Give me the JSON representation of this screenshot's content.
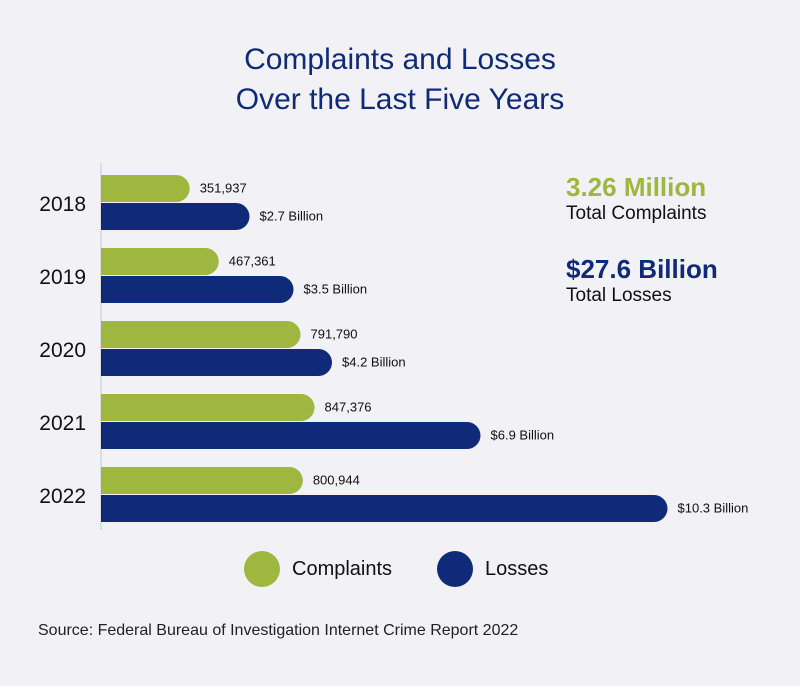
{
  "title_line1": "Complaints and Losses",
  "title_line2": "Over the Last Five Years",
  "colors": {
    "complaints": "#9fb63f",
    "losses": "#0f2a78",
    "background": "#f1f1f6",
    "axis": "#c6c6cc"
  },
  "stats": {
    "complaints_value": "3.26 Million",
    "complaints_label": "Total Complaints",
    "losses_value": "$27.6 Billion",
    "losses_label": "Total Losses"
  },
  "legend": {
    "complaints": "Complaints",
    "losses": "Losses"
  },
  "source": "Source: Federal Bureau of Investigation Internet Crime Report 2022",
  "chart_data": {
    "type": "bar",
    "orientation": "horizontal",
    "title": "Complaints and Losses Over the Last Five Years",
    "categories": [
      "2018",
      "2019",
      "2020",
      "2021",
      "2022"
    ],
    "series": [
      {
        "name": "Complaints",
        "values": [
          351937,
          467361,
          791790,
          847376,
          800944
        ],
        "labels": [
          "351,937",
          "467,361",
          "791,790",
          "847,376",
          "800,944"
        ]
      },
      {
        "name": "Losses",
        "unit": "Billion USD",
        "values": [
          2.7,
          3.5,
          4.2,
          6.9,
          10.3
        ],
        "labels": [
          "$2.7 Billion",
          "$3.5 Billion",
          "$4.2 Billion",
          "$6.9 Billion",
          "$10.3 Billion"
        ]
      }
    ],
    "legend_position": "bottom-center"
  }
}
